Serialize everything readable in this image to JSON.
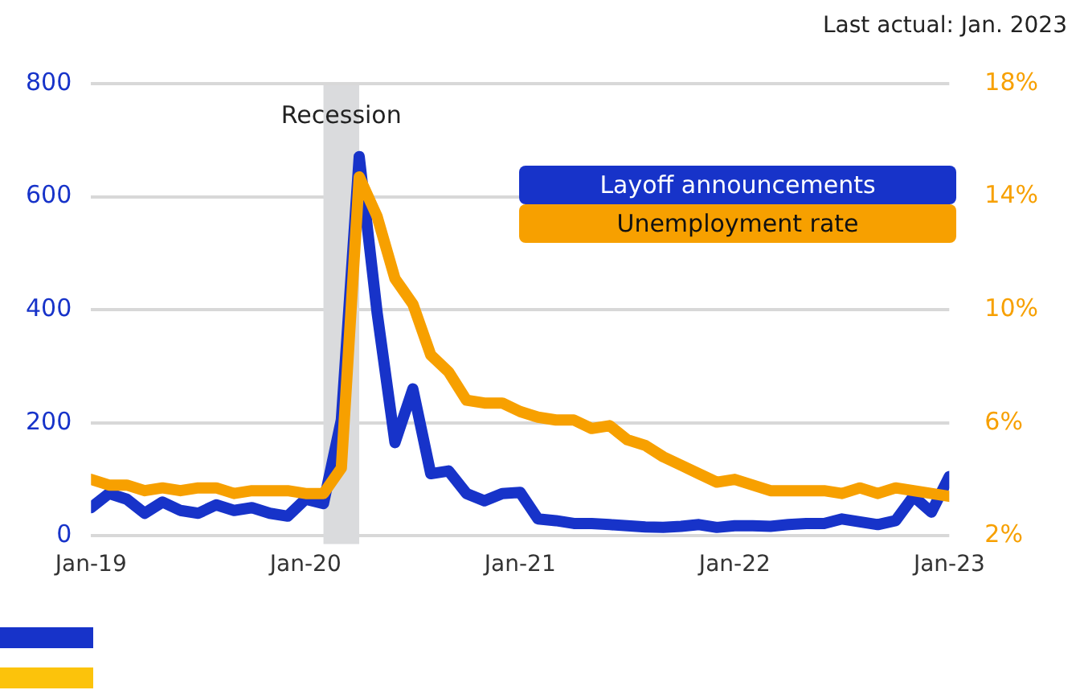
{
  "chart_data": {
    "type": "line",
    "annotations": [
      "Last actual: Jan. 2023"
    ],
    "x": [
      "2019-01",
      "2019-02",
      "2019-03",
      "2019-04",
      "2019-05",
      "2019-06",
      "2019-07",
      "2019-08",
      "2019-09",
      "2019-10",
      "2019-11",
      "2019-12",
      "2020-01",
      "2020-02",
      "2020-03",
      "2020-04",
      "2020-05",
      "2020-06",
      "2020-07",
      "2020-08",
      "2020-09",
      "2020-10",
      "2020-11",
      "2020-12",
      "2021-01",
      "2021-02",
      "2021-03",
      "2021-04",
      "2021-05",
      "2021-06",
      "2021-07",
      "2021-08",
      "2021-09",
      "2021-10",
      "2021-11",
      "2021-12",
      "2022-01",
      "2022-02",
      "2022-03",
      "2022-04",
      "2022-05",
      "2022-06",
      "2022-07",
      "2022-08",
      "2022-09",
      "2022-10",
      "2022-11",
      "2022-12",
      "2023-01"
    ],
    "series": [
      {
        "name": "Layoff announcements",
        "color": "#1733c9",
        "values": [
          50,
          75,
          65,
          40,
          60,
          45,
          40,
          55,
          45,
          50,
          40,
          35,
          65,
          57,
          205,
          671,
          395,
          165,
          260,
          110,
          115,
          75,
          62,
          75,
          77,
          30,
          27,
          22,
          22,
          20,
          18,
          16,
          15,
          17,
          20,
          15,
          18,
          18,
          17,
          20,
          22,
          22,
          30,
          25,
          20,
          27,
          70,
          42,
          105
        ]
      },
      {
        "name": "Unemployment rate",
        "color": "#f7a000",
        "axis": "y2",
        "values": [
          4.0,
          3.8,
          3.8,
          3.6,
          3.7,
          3.6,
          3.7,
          3.7,
          3.5,
          3.6,
          3.6,
          3.6,
          3.5,
          3.5,
          4.4,
          14.7,
          13.3,
          11.1,
          10.2,
          8.4,
          7.8,
          6.8,
          6.7,
          6.7,
          6.4,
          6.2,
          6.1,
          6.1,
          5.8,
          5.9,
          5.4,
          5.2,
          4.8,
          4.5,
          4.2,
          3.9,
          4.0,
          3.8,
          3.6,
          3.6,
          3.6,
          3.6,
          3.5,
          3.7,
          3.5,
          3.7,
          3.6,
          3.5,
          3.4
        ]
      }
    ],
    "xlim": [
      "2019-01",
      "2023-01"
    ],
    "xticks": [
      {
        "value": "2019-01",
        "label": "Jan-19"
      },
      {
        "value": "2020-01",
        "label": "Jan-20"
      },
      {
        "value": "2021-01",
        "label": "Jan-21"
      },
      {
        "value": "2022-01",
        "label": "Jan-22"
      },
      {
        "value": "2023-01",
        "label": "Jan-23"
      }
    ],
    "ylim": [
      0,
      800
    ],
    "yticks": [
      0,
      200,
      400,
      600,
      800
    ],
    "y2lim": [
      2,
      18
    ],
    "y2ticks": [
      {
        "value": 2,
        "label": "2%"
      },
      {
        "value": 6,
        "label": "6%"
      },
      {
        "value": 10,
        "label": "10%"
      },
      {
        "value": 14,
        "label": "14%"
      },
      {
        "value": 18,
        "label": "18%"
      }
    ],
    "bands": [
      {
        "axis": "x",
        "from": "2020-02",
        "to": "2020-04",
        "label": "Recession",
        "color": "#dadbdd"
      }
    ],
    "grid": "y",
    "legend": "top right",
    "marker": "none",
    "line_style": "solid"
  }
}
